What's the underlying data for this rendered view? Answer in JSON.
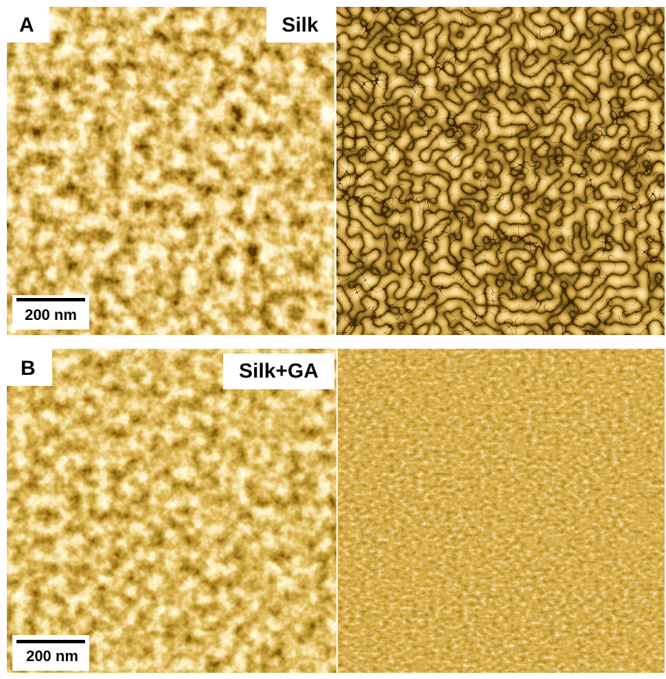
{
  "panels": [
    {
      "label": "A",
      "sample": "Silk",
      "scale_bar": "200 nm"
    },
    {
      "label": "B",
      "sample": "Silk+GA",
      "scale_bar": "200 nm"
    }
  ]
}
